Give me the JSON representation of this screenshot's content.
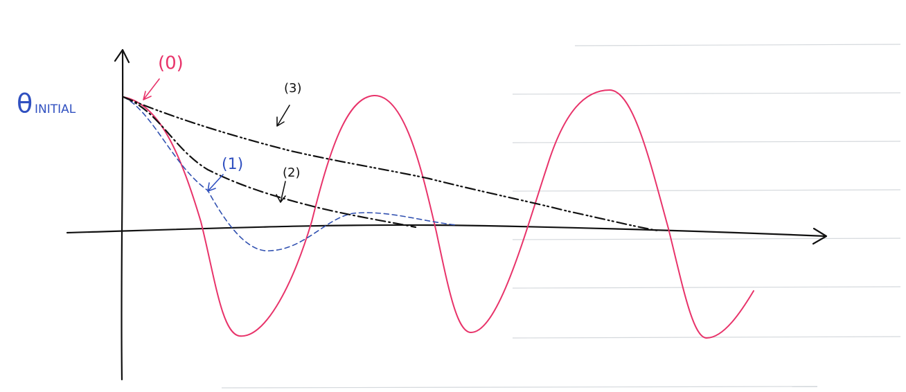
{
  "axis_label": {
    "symbol": "θ",
    "subscript": "INITIAL"
  },
  "curves": [
    {
      "label": "(0)"
    },
    {
      "label": "(1)"
    },
    {
      "label": "(2)"
    },
    {
      "label": "(3)"
    }
  ]
}
